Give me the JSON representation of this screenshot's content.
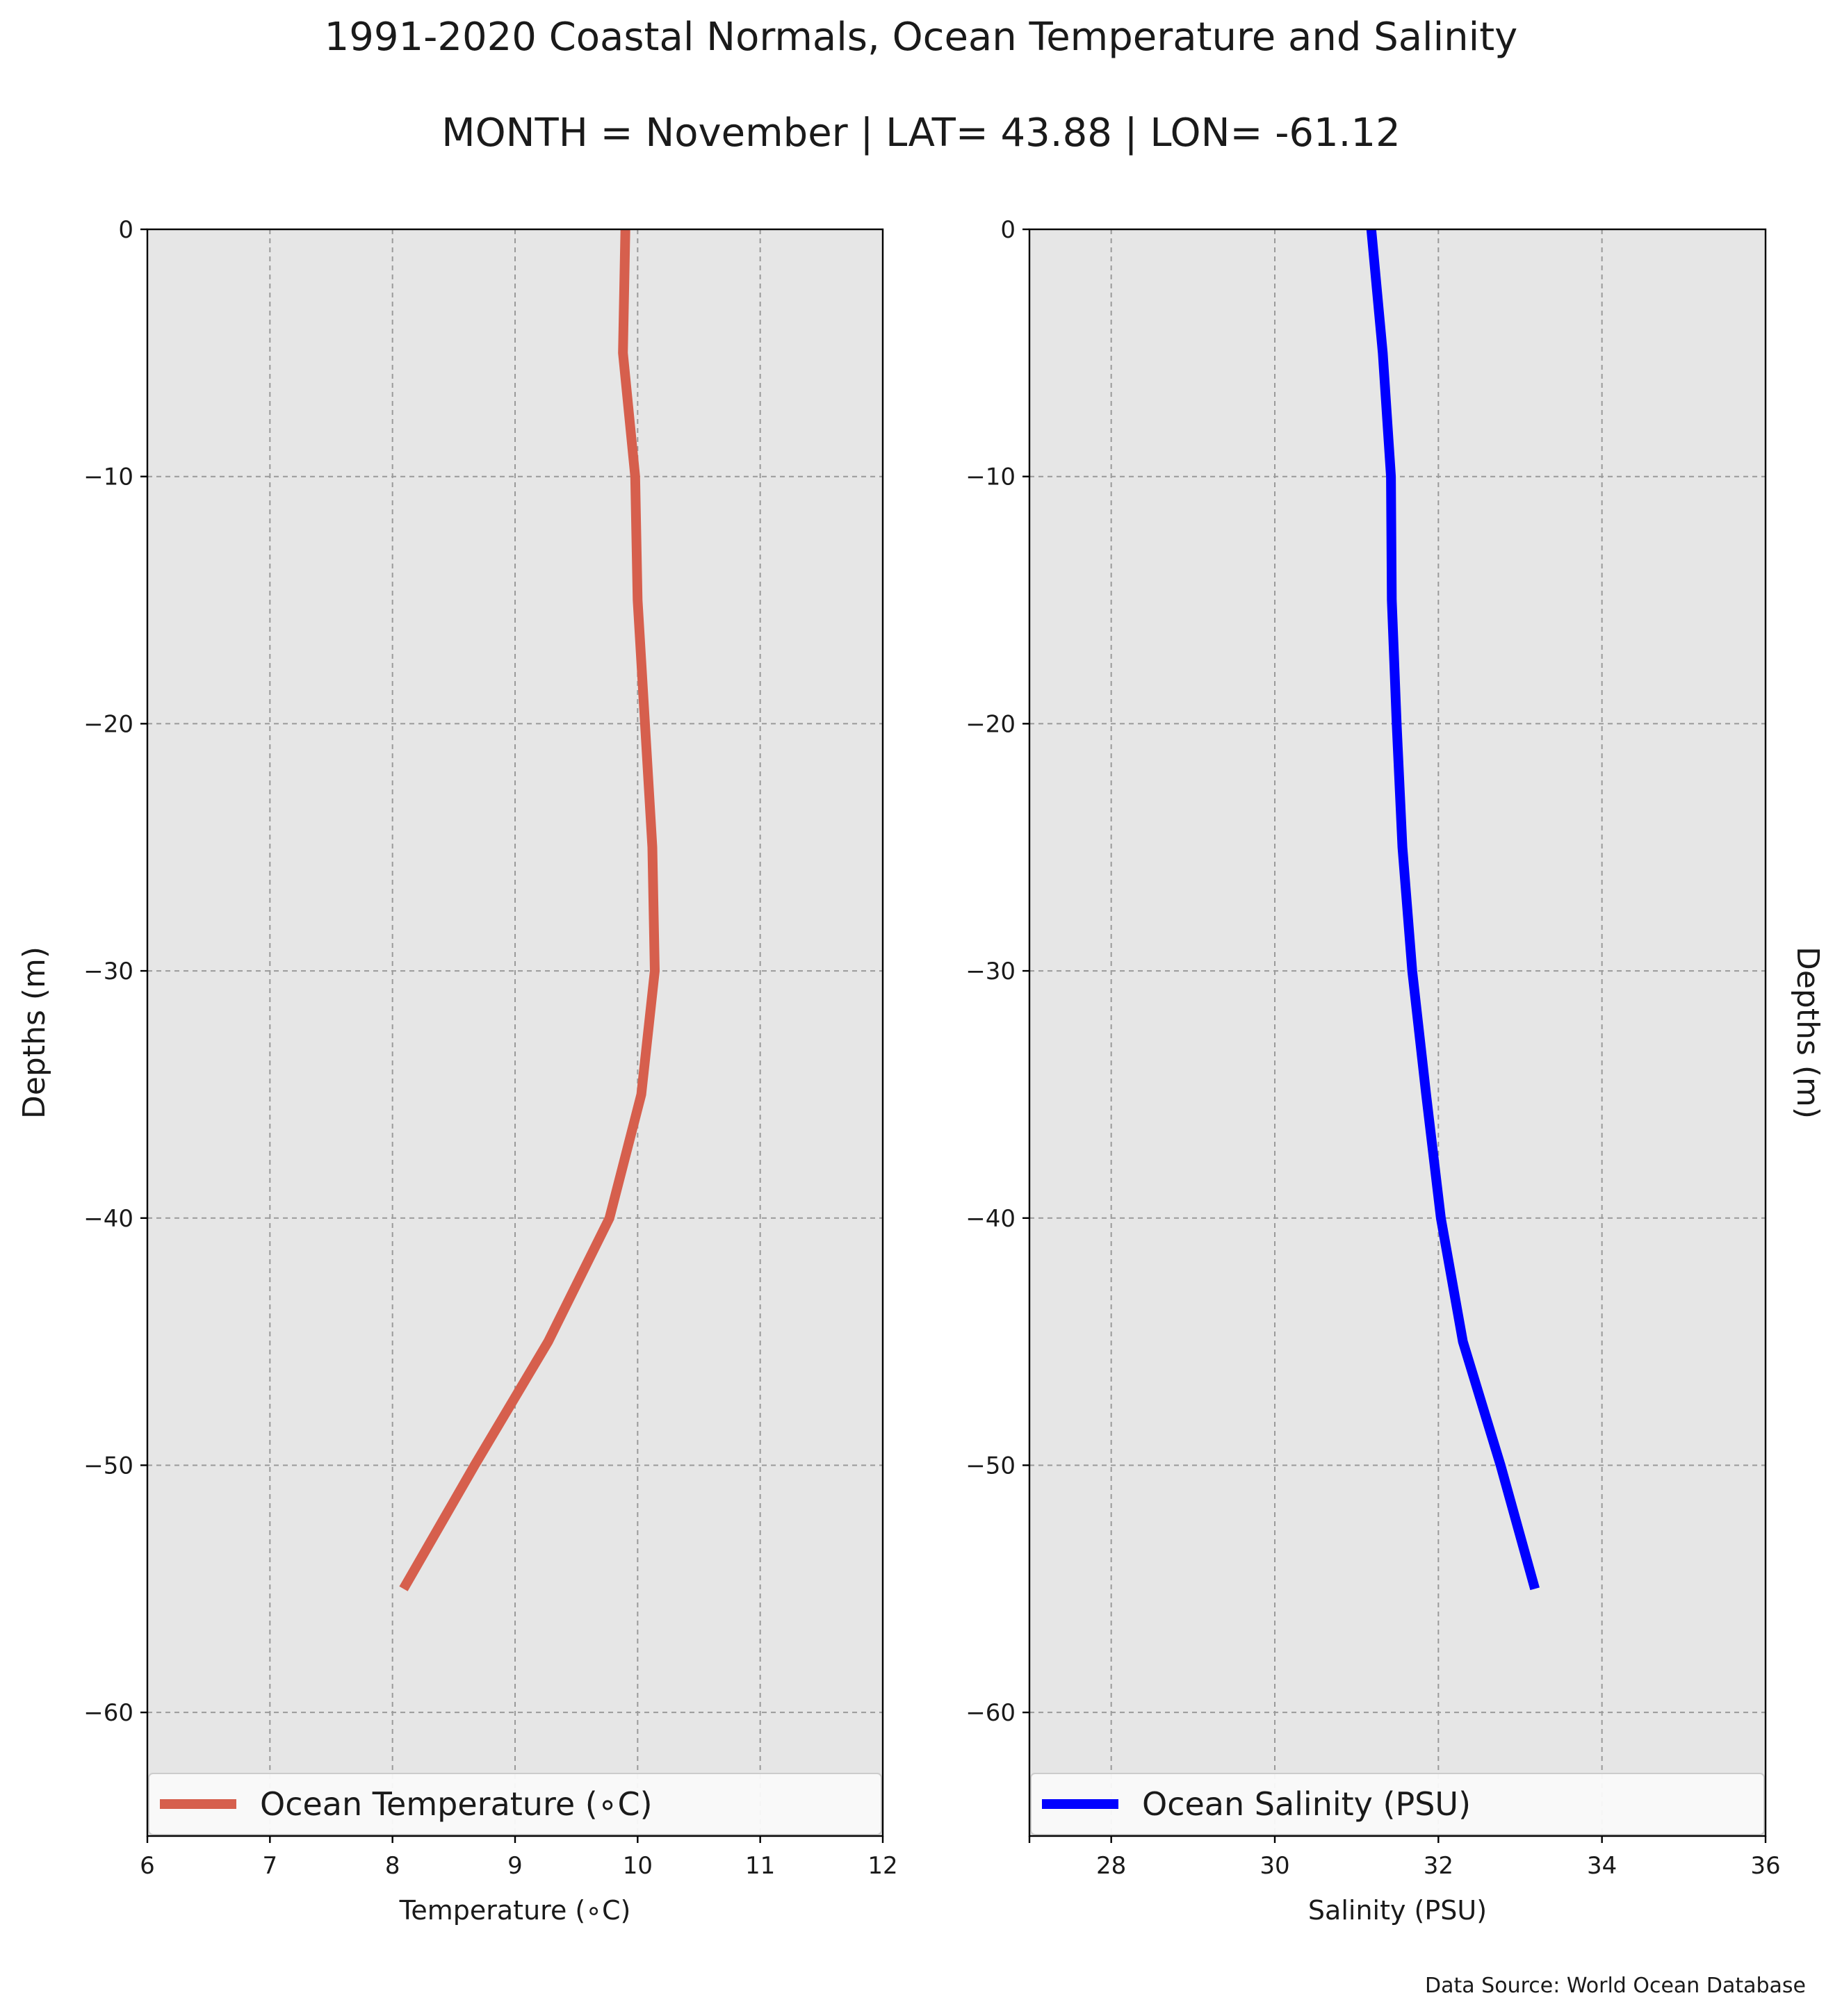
{
  "header": {
    "title": "1991-2020 Coastal Normals, Ocean Temperature and Salinity",
    "subtitle": "MONTH = November | LAT= 43.88 | LON= -61.12"
  },
  "footer": {
    "source": "Data Source: World Ocean Database"
  },
  "chart_data": [
    {
      "type": "line",
      "xlabel": "Temperature ($^\\circ$C)",
      "xlabel_display": "Temperature (∘C)",
      "ylabel": "Depths (m)",
      "ylabel_side": "left",
      "xlim": [
        6,
        12
      ],
      "ylim": [
        -65,
        0
      ],
      "xticks": [
        6,
        7,
        8,
        9,
        10,
        11,
        12
      ],
      "xtick_labels": [
        "6",
        "7",
        "8",
        "9",
        "10",
        "11",
        "12"
      ],
      "yticks": [
        0,
        -10,
        -20,
        -30,
        -40,
        -50,
        -60
      ],
      "ytick_labels": [
        "0",
        "−10",
        "−20",
        "−30",
        "−40",
        "−50",
        "−60"
      ],
      "grid": true,
      "legend_position": "lower-center",
      "series": [
        {
          "name": "Ocean Temperature (∘C)",
          "color": "#d65f4d",
          "x": [
            9.9,
            9.88,
            9.98,
            10.0,
            10.06,
            10.12,
            10.14,
            10.03,
            9.77,
            9.27,
            8.67,
            8.09
          ],
          "y": [
            0,
            -5,
            -10,
            -15,
            -20,
            -25,
            -30,
            -35,
            -40,
            -45,
            -50,
            -55
          ]
        }
      ]
    },
    {
      "type": "line",
      "xlabel": "Salinity (PSU)",
      "ylabel": "Depths (m)",
      "ylabel_side": "right",
      "xlim": [
        27,
        36
      ],
      "ylim": [
        -65,
        0
      ],
      "xticks": [
        28,
        30,
        32,
        34,
        36
      ],
      "xtick_labels": [
        "28",
        "30",
        "32",
        "34",
        "36"
      ],
      "yticks": [
        0,
        -10,
        -20,
        -30,
        -40,
        -50,
        -60
      ],
      "ytick_labels": [
        "0",
        "−10",
        "−20",
        "−30",
        "−40",
        "−50",
        "−60"
      ],
      "grid": true,
      "legend_position": "lower-center",
      "series": [
        {
          "name": "Ocean Salinity (PSU)",
          "color": "#0000ff",
          "x": [
            31.18,
            31.32,
            31.42,
            31.43,
            31.49,
            31.56,
            31.68,
            31.85,
            32.03,
            32.3,
            32.76,
            33.18
          ],
          "y": [
            0,
            -5,
            -10,
            -15,
            -20,
            -25,
            -30,
            -35,
            -40,
            -45,
            -50,
            -55
          ]
        }
      ]
    }
  ]
}
